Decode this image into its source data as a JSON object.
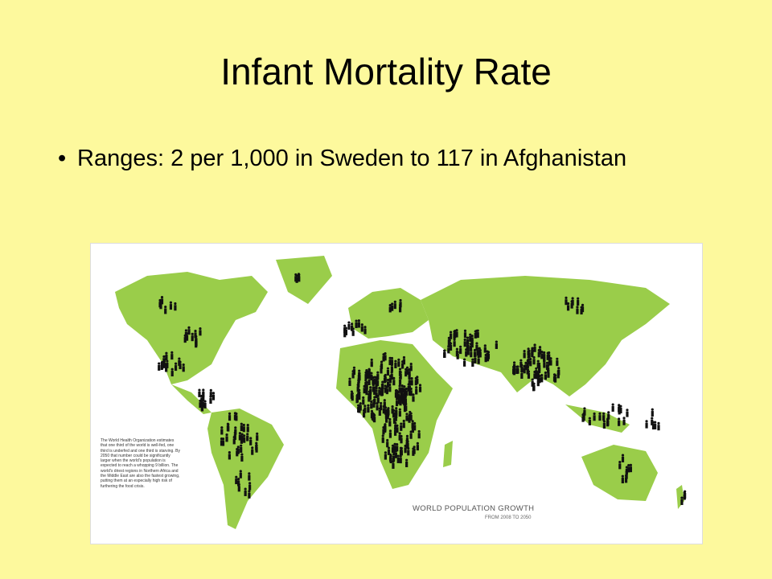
{
  "slide": {
    "title": "Infant Mortality Rate",
    "bullets": [
      "Ranges: 2 per 1,000 in Sweden to 117 in Afghanistan"
    ],
    "image": {
      "body": "The World Health Organization estimates that one third of the world is well-fed, one third is underfed and one third is starving. By 2050 that number could be significantly larger when the world's population is expected to reach a whopping 9 billion. The world's driest regions in Northern Africa and the Middle East are also the fastest growing, putting them at an especially high risk of furthering the food crisis.",
      "caption_title": "WORLD POPULATION GROWTH",
      "caption_subtitle": "FROM 2008 TO 2050"
    }
  }
}
